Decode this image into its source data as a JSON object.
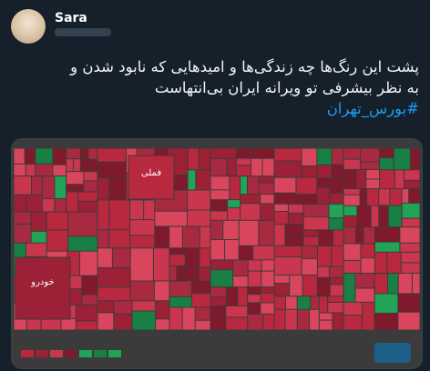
{
  "author": {
    "name": "Sara"
  },
  "tweet": {
    "lines": [
      "پشت این رنگ‌ها چه زندگی‌ها و امیدهایی که نابود شدن و",
      "به نظر بیشرفی تو ویرانه ایران  بی‌انتهاست"
    ],
    "hashtag": "#بورس_تهران"
  },
  "image": {
    "labels": [
      "فملی",
      "خودرو"
    ]
  }
}
